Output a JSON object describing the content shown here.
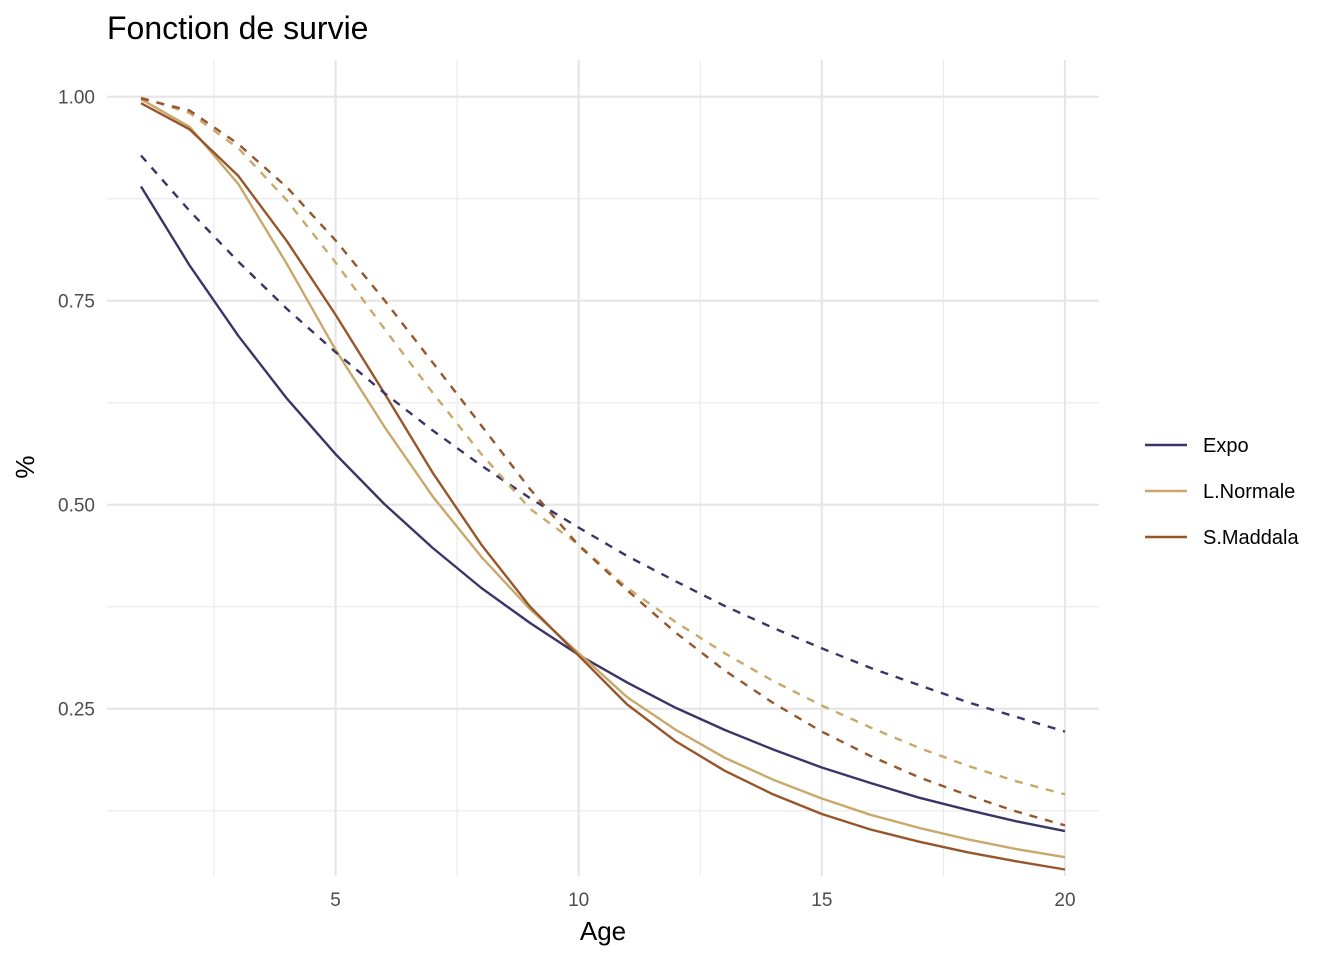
{
  "chart_data": {
    "type": "line",
    "title": "Fonction de survie",
    "xlabel": "Age",
    "ylabel": "%",
    "xlim": [
      0.3,
      20.7
    ],
    "ylim": [
      0.045,
      1.045
    ],
    "x_ticks": [
      5,
      10,
      15,
      20
    ],
    "x_tick_labels": [
      "5",
      "10",
      "15",
      "20"
    ],
    "x_minor_ticks": [
      2.5,
      7.5,
      12.5,
      17.5
    ],
    "y_ticks": [
      0.25,
      0.5,
      0.75,
      1.0
    ],
    "y_tick_labels": [
      "0.25",
      "0.50",
      "0.75",
      "1.00"
    ],
    "y_minor_ticks": [
      0.125,
      0.375,
      0.625,
      0.875
    ],
    "grid": true,
    "legend_position": "right",
    "x": [
      1,
      2,
      3,
      4,
      5,
      6,
      7,
      8,
      9,
      10,
      11,
      12,
      13,
      14,
      15,
      16,
      17,
      18,
      19,
      20
    ],
    "series": [
      {
        "name": "Expo",
        "color": "#3b3467",
        "dashed": false,
        "values": [
          0.89,
          0.793,
          0.707,
          0.63,
          0.562,
          0.501,
          0.447,
          0.398,
          0.355,
          0.316,
          0.282,
          0.251,
          0.224,
          0.2,
          0.178,
          0.159,
          0.141,
          0.126,
          0.112,
          0.1
        ]
      },
      {
        "name": "L.Normale",
        "color": "#c9a86c",
        "dashed": false,
        "values": [
          0.997,
          0.963,
          0.893,
          0.795,
          0.69,
          0.596,
          0.51,
          0.436,
          0.372,
          0.318,
          0.264,
          0.224,
          0.19,
          0.163,
          0.14,
          0.12,
          0.104,
          0.09,
          0.078,
          0.068
        ]
      },
      {
        "name": "S.Maddala",
        "color": "#96562a",
        "dashed": false,
        "values": [
          0.992,
          0.96,
          0.903,
          0.823,
          0.733,
          0.637,
          0.539,
          0.451,
          0.375,
          0.315,
          0.255,
          0.21,
          0.174,
          0.145,
          0.121,
          0.102,
          0.087,
          0.074,
          0.063,
          0.053
        ]
      },
      {
        "color": "#3b3467",
        "dashed": true,
        "values": [
          0.928,
          0.86,
          0.798,
          0.74,
          0.687,
          0.637,
          0.591,
          0.548,
          0.508,
          0.472,
          0.437,
          0.406,
          0.376,
          0.349,
          0.324,
          0.3,
          0.279,
          0.258,
          0.24,
          0.222
        ]
      },
      {
        "color": "#c9a86c",
        "dashed": true,
        "values": [
          0.999,
          0.98,
          0.937,
          0.873,
          0.797,
          0.716,
          0.637,
          0.562,
          0.495,
          0.451,
          0.398,
          0.356,
          0.318,
          0.284,
          0.254,
          0.227,
          0.202,
          0.18,
          0.161,
          0.145
        ]
      },
      {
        "color": "#96562a",
        "dashed": true,
        "values": [
          0.998,
          0.983,
          0.942,
          0.889,
          0.824,
          0.751,
          0.674,
          0.597,
          0.519,
          0.45,
          0.395,
          0.343,
          0.297,
          0.257,
          0.222,
          0.192,
          0.166,
          0.144,
          0.124,
          0.107
        ]
      }
    ]
  }
}
